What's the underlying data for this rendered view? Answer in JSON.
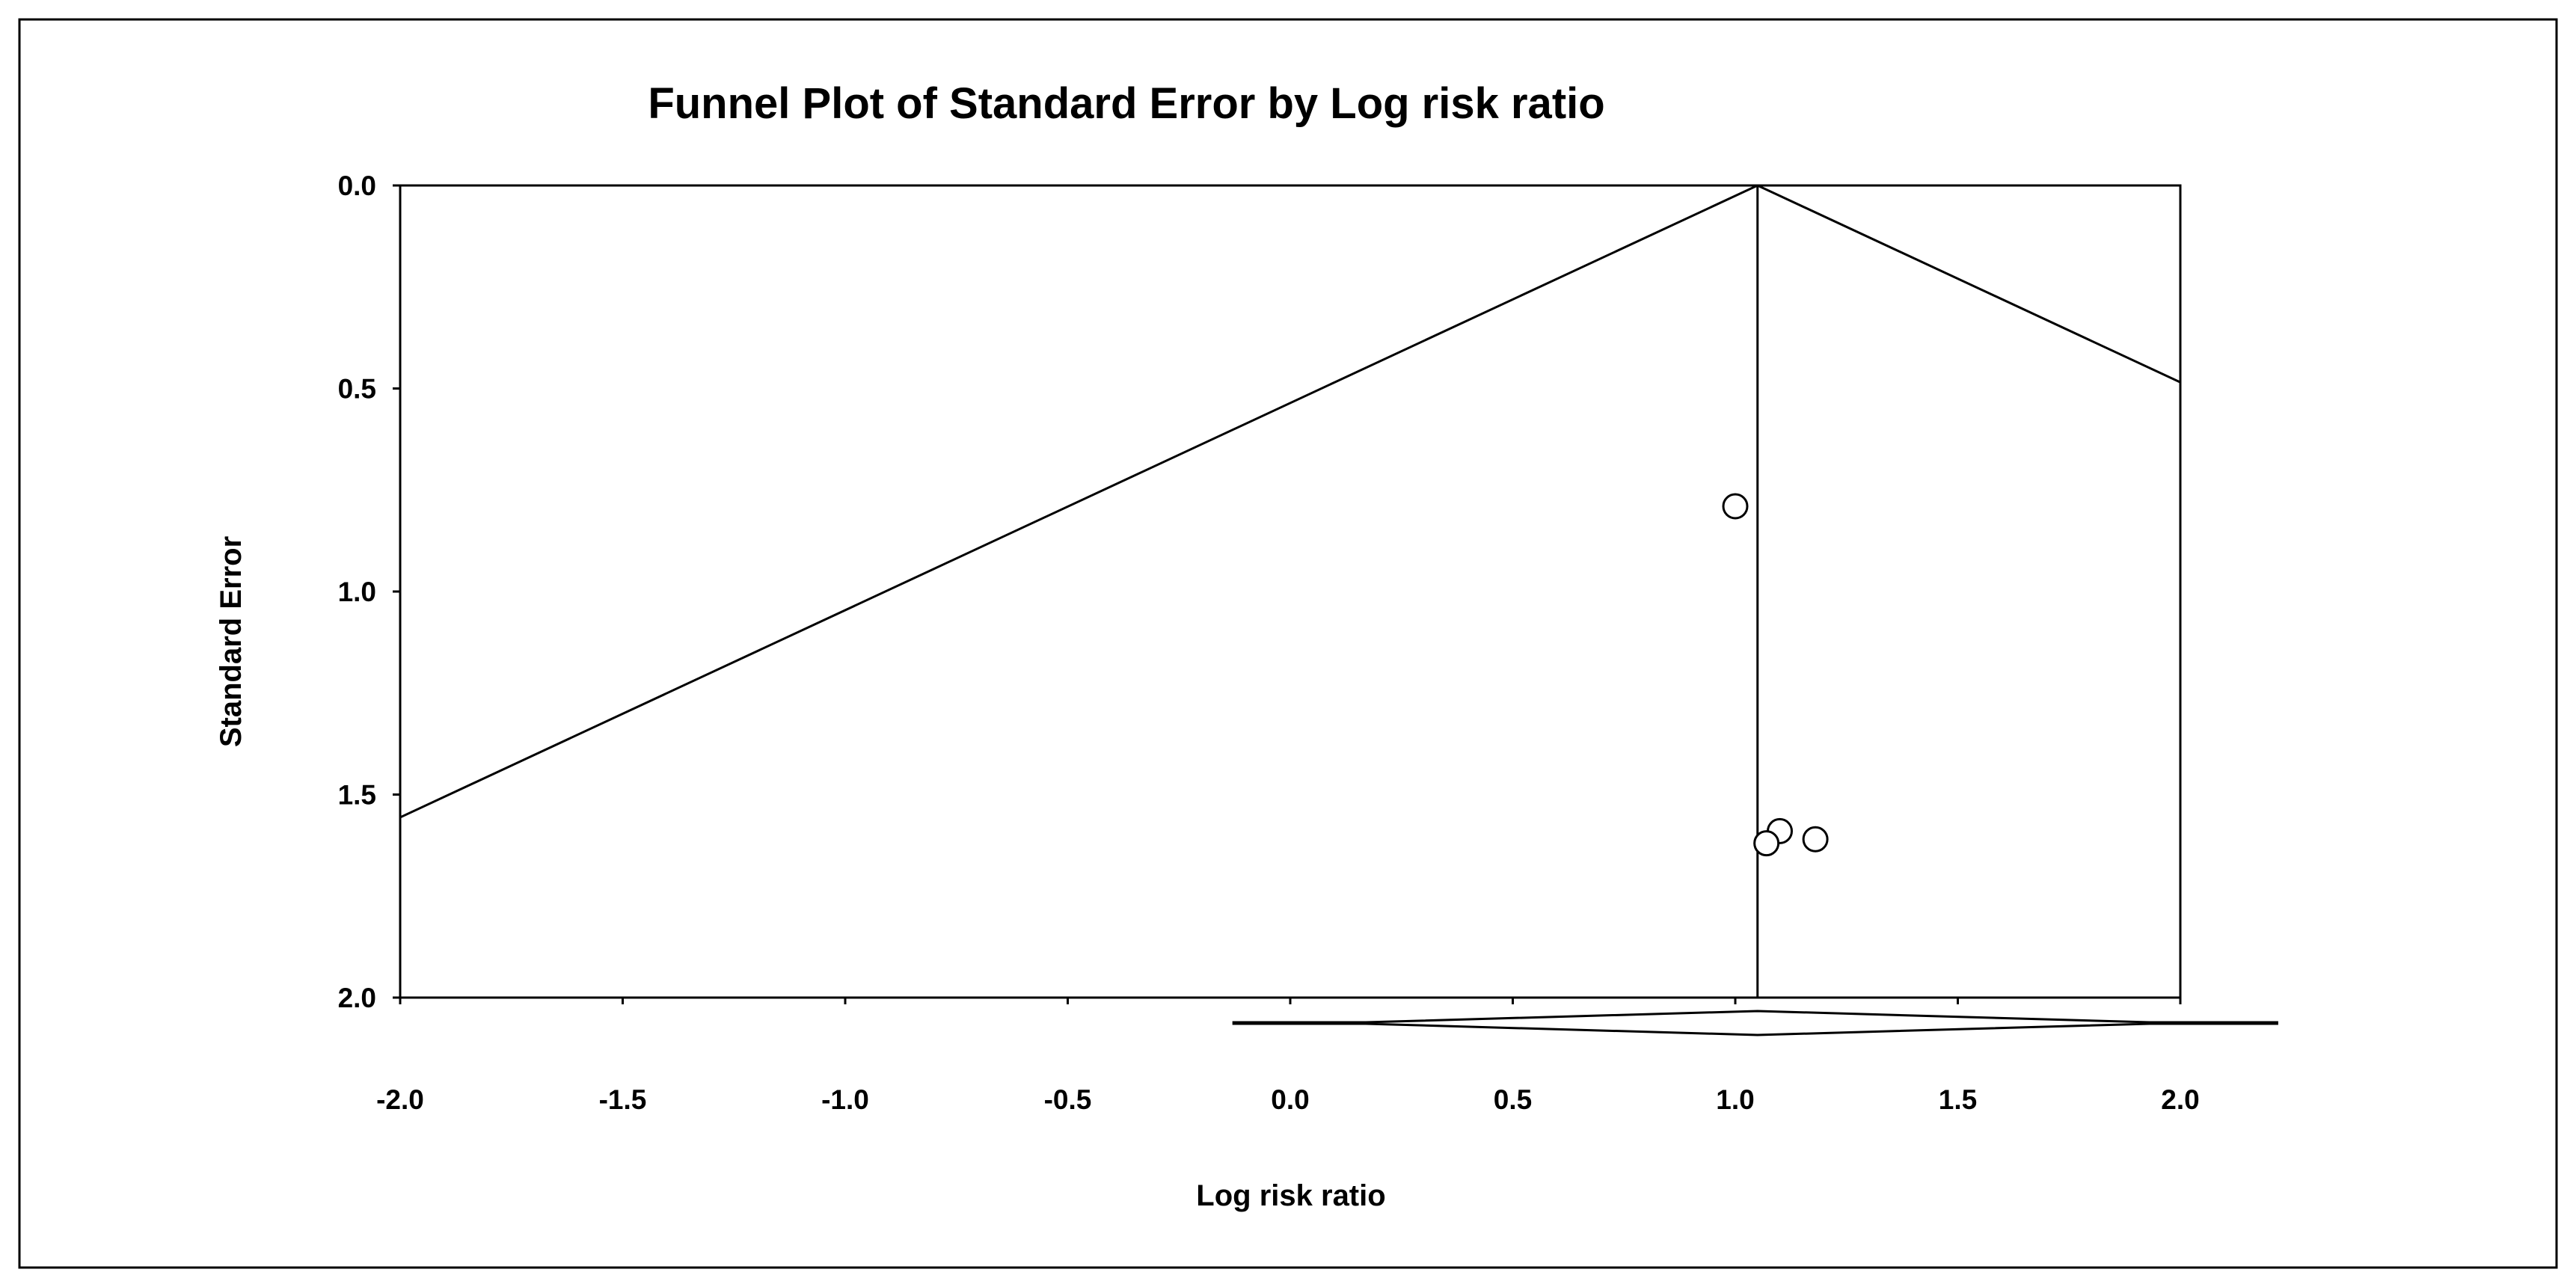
{
  "chart_data": {
    "type": "scatter",
    "title": "Funnel Plot of Standard Error by Log risk ratio",
    "xlabel": "Log risk ratio",
    "ylabel": "Standard Error",
    "xlim": [
      -2.0,
      2.0
    ],
    "ylim": [
      0.0,
      2.0
    ],
    "y_inverted": true,
    "x_ticks": [
      "-2.0",
      "-1.5",
      "-1.0",
      "-0.5",
      "0.0",
      "0.5",
      "1.0",
      "1.5",
      "2.0"
    ],
    "y_ticks": [
      "0.0",
      "0.5",
      "1.0",
      "1.5",
      "2.0"
    ],
    "grid": false,
    "legend": "none",
    "pooled_effect": 1.05,
    "points": [
      {
        "x": 1.0,
        "y": 0.79
      },
      {
        "x": 1.1,
        "y": 1.59
      },
      {
        "x": 1.07,
        "y": 1.62
      },
      {
        "x": 1.18,
        "y": 1.61
      }
    ],
    "summary_diamond": {
      "lower": 0.11,
      "center": 1.05,
      "upper": 1.99
    },
    "summary_bar": {
      "lower": -0.13,
      "upper": 2.22
    }
  }
}
